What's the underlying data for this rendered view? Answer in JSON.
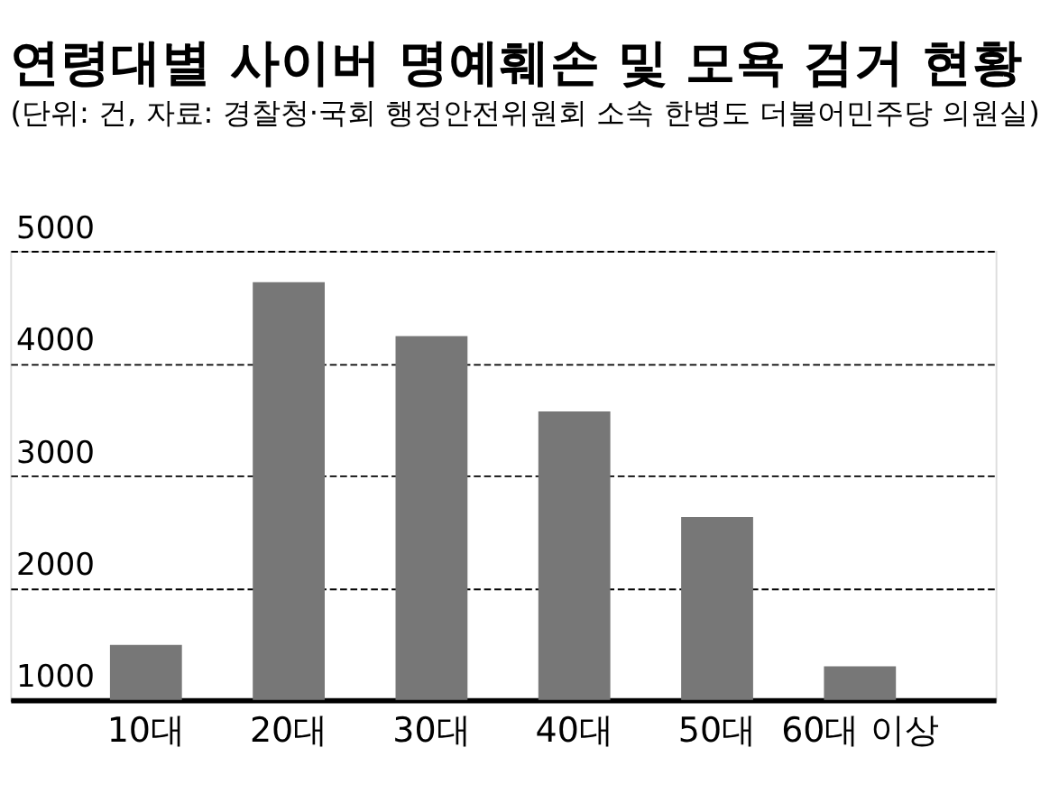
{
  "chart_data": {
    "type": "bar",
    "title": "연령대별 사이버 명예훼손 및 모욕 검거 현황",
    "subtitle": "(단위: 건, 자료: 경찰청·국회 행정안전위원회 소속 한병도 더불어민주당 의원실)",
    "categories": [
      "10대",
      "20대",
      "30대",
      "40대",
      "50대",
      "60대 이상"
    ],
    "values": [
      1490,
      4720,
      4240,
      3570,
      2630,
      1300
    ],
    "color": "#777777",
    "ylim": [
      1000,
      5000
    ],
    "yticks": [
      1000,
      2000,
      3000,
      4000,
      5000
    ],
    "grid": "y"
  }
}
